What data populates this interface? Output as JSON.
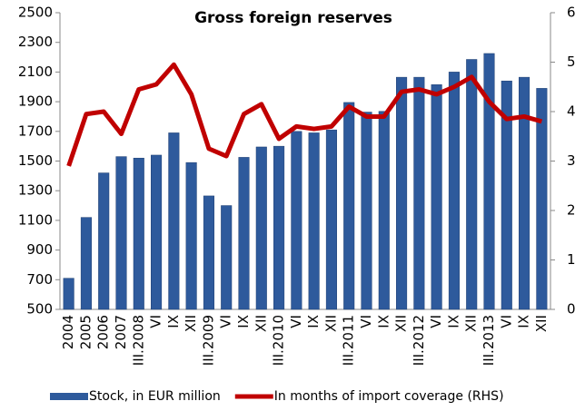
{
  "chart_data": {
    "type": "bar-line",
    "title": "Gross foreign reserves",
    "categories": [
      "2004",
      "2005",
      "2006",
      "2007",
      "III.2008",
      "VI",
      "IX",
      "XII",
      "III.2009",
      "VI",
      "IX",
      "XII",
      "III.2010",
      "VI",
      "IX",
      "XII",
      "III.2011",
      "VI",
      "IX",
      "XII",
      "III.2012",
      "VI",
      "IX",
      "XII",
      "III.2013",
      "VI",
      "IX",
      "XII"
    ],
    "series": [
      {
        "name": "Stock, in EUR million",
        "type": "bar",
        "color": "#2e5a9c",
        "values": [
          710,
          1120,
          1420,
          1530,
          1520,
          1540,
          1690,
          1490,
          1265,
          1200,
          1525,
          1595,
          1600,
          1700,
          1690,
          1710,
          1895,
          1830,
          1835,
          2065,
          2065,
          2015,
          2100,
          2185,
          2225,
          2040,
          2065,
          1990
        ]
      },
      {
        "name": "In months of import coverage (RHS)",
        "type": "line",
        "axis": "y2",
        "color": "#c00000",
        "values": [
          2.9,
          3.95,
          4.0,
          3.55,
          4.45,
          4.55,
          4.95,
          4.35,
          3.25,
          3.1,
          3.95,
          4.15,
          3.45,
          3.7,
          3.65,
          3.7,
          4.1,
          3.9,
          3.9,
          4.4,
          4.45,
          4.35,
          4.5,
          4.7,
          4.2,
          3.85,
          3.9,
          3.8
        ]
      }
    ],
    "ylim": [
      500,
      2500
    ],
    "yticks": [
      500,
      700,
      900,
      1100,
      1300,
      1500,
      1700,
      1900,
      2100,
      2300,
      2500
    ],
    "y2lim": [
      0,
      6
    ],
    "y2ticks": [
      0,
      1,
      2,
      3,
      4,
      5,
      6
    ],
    "grid": false,
    "legend": "bottom"
  }
}
